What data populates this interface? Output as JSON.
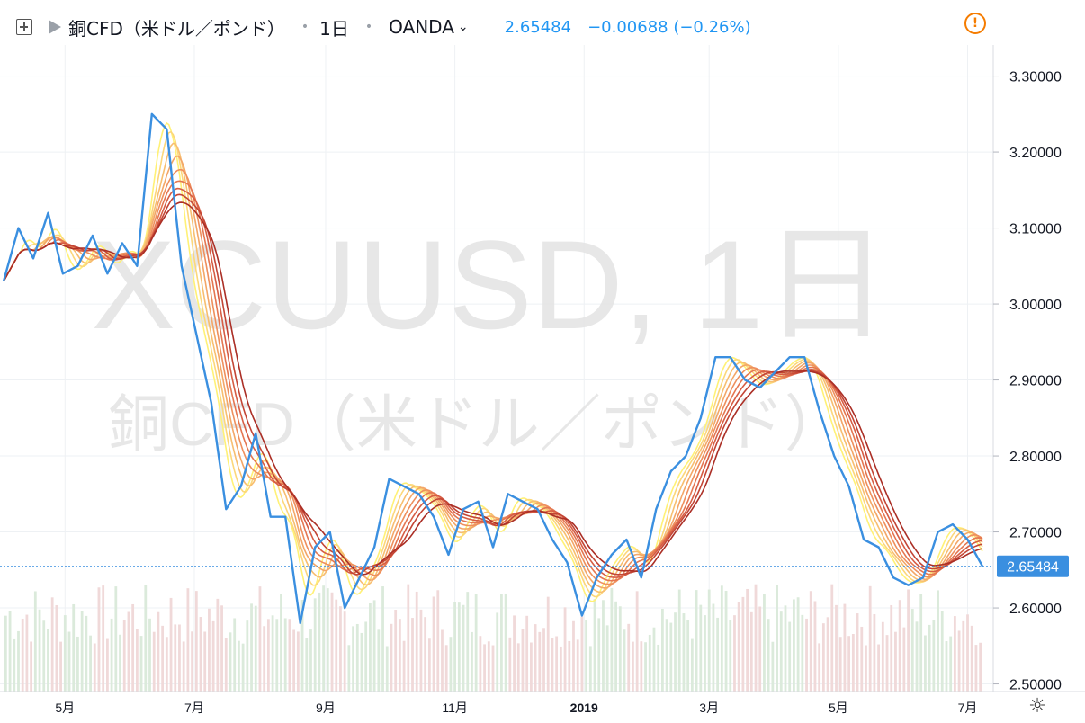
{
  "header": {
    "title": "銅CFD（米ドル／ポンド）",
    "interval": "1日",
    "broker": "OANDA",
    "last_price": "2.65484",
    "change": "−0.00688 (−0.26%)"
  },
  "watermark": {
    "line1": "XCUUSD, 1日",
    "line2": "銅CFD（米ドル／ポンド）"
  },
  "colors": {
    "price_line": "#3a8fe0",
    "ribbon": [
      "#fff176",
      "#fcd77a",
      "#f7be70",
      "#f3a667",
      "#ee8f5d",
      "#e47651",
      "#d65d44",
      "#c34535",
      "#ab2f26"
    ],
    "volume_up": "#dbeadb",
    "volume_down": "#f0d9d9",
    "grid": "#eef1f4"
  },
  "chart_data": {
    "type": "line",
    "title": "銅CFD（米ドル／ポンド）",
    "xlabel": "",
    "ylabel": "",
    "ylim": [
      2.49,
      3.335
    ],
    "x_ticks": [
      "5月",
      "7月",
      "9月",
      "11月",
      "2019",
      "3月",
      "5月",
      "7月"
    ],
    "y_ticks": [
      "3.30000",
      "3.20000",
      "3.10000",
      "3.00000",
      "2.90000",
      "2.80000",
      "2.70000",
      "2.60000",
      "2.50000"
    ],
    "last_value_label": "2.65484",
    "last_value": 2.65484,
    "series": [
      {
        "x": [
          "2018-04-02",
          "2018-04-09",
          "2018-04-16",
          "2018-04-23",
          "2018-04-30",
          "2018-05-07",
          "2018-05-14",
          "2018-05-21",
          "2018-05-28",
          "2018-06-04",
          "2018-06-11",
          "2018-06-18",
          "2018-06-25",
          "2018-07-02",
          "2018-07-09",
          "2018-07-16",
          "2018-07-23",
          "2018-07-30",
          "2018-08-06",
          "2018-08-13",
          "2018-08-20",
          "2018-08-27",
          "2018-09-03",
          "2018-09-10",
          "2018-09-17",
          "2018-09-24",
          "2018-10-01",
          "2018-10-08",
          "2018-10-15",
          "2018-10-22",
          "2018-10-29",
          "2018-11-05",
          "2018-11-12",
          "2018-11-19",
          "2018-11-26",
          "2018-12-03",
          "2018-12-10",
          "2018-12-17",
          "2018-12-24",
          "2018-12-31",
          "2019-01-07",
          "2019-01-14",
          "2019-01-21",
          "2019-01-28",
          "2019-02-04",
          "2019-02-11",
          "2019-02-18",
          "2019-02-25",
          "2019-03-04",
          "2019-03-11",
          "2019-03-18",
          "2019-03-25",
          "2019-04-01",
          "2019-04-08",
          "2019-04-15",
          "2019-04-22",
          "2019-04-29",
          "2019-05-06",
          "2019-05-13",
          "2019-05-20",
          "2019-05-27",
          "2019-06-03",
          "2019-06-10",
          "2019-06-17",
          "2019-06-24",
          "2019-07-01",
          "2019-07-08"
        ],
        "values": [
          3.03,
          3.1,
          3.06,
          3.12,
          3.04,
          3.05,
          3.09,
          3.04,
          3.08,
          3.05,
          3.25,
          3.23,
          3.05,
          2.96,
          2.87,
          2.73,
          2.76,
          2.83,
          2.72,
          2.72,
          2.58,
          2.68,
          2.7,
          2.6,
          2.64,
          2.68,
          2.77,
          2.76,
          2.75,
          2.72,
          2.67,
          2.73,
          2.74,
          2.68,
          2.75,
          2.74,
          2.73,
          2.69,
          2.66,
          2.59,
          2.64,
          2.67,
          2.69,
          2.64,
          2.73,
          2.78,
          2.8,
          2.85,
          2.93,
          2.93,
          2.9,
          2.89,
          2.91,
          2.93,
          2.93,
          2.86,
          2.8,
          2.76,
          2.69,
          2.68,
          2.64,
          2.63,
          2.64,
          2.7,
          2.71,
          2.69,
          2.65484
        ]
      }
    ]
  }
}
